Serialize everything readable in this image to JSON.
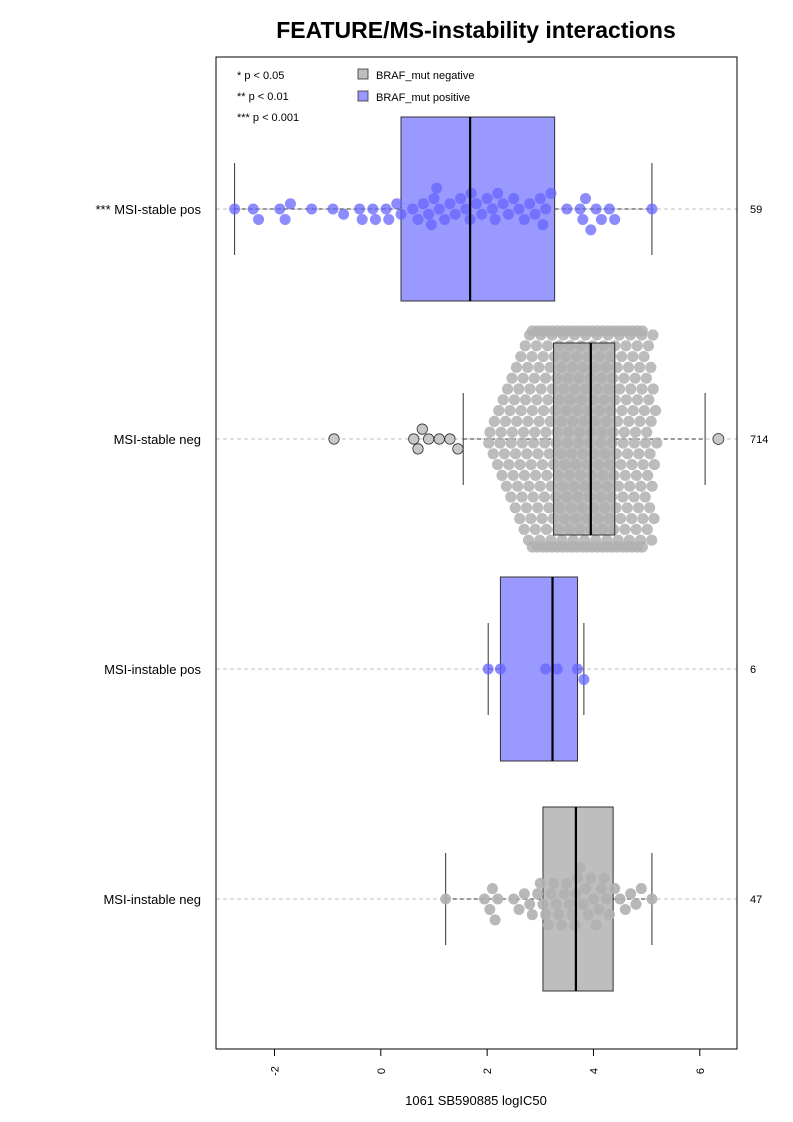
{
  "chart_data": {
    "type": "boxplot-beeswarm",
    "title": "FEATURE/MS-instability interactions",
    "xlabel": "1061 SB590885 logIC50",
    "xlim": [
      -3.1,
      6.7
    ],
    "x_ticks": [
      -2,
      0,
      2,
      4,
      6
    ],
    "x_tick_labels": [
      "-2",
      "0",
      "2",
      "4",
      "6"
    ],
    "grid": "dashed horizontal line per group",
    "legend_position": "top-left",
    "significance_legend": [
      "* p < 0.05",
      "** p < 0.01",
      "*** p < 0.001"
    ],
    "legend": [
      {
        "label": "BRAF_mut negative",
        "color": "#bebebe"
      },
      {
        "label": "BRAF_mut positive",
        "color": "#9999ff"
      }
    ],
    "colors": {
      "negative_box": "#bebebe",
      "positive_box": "#9999ff",
      "negative_point": "#b0b0b0",
      "positive_point": "#6666ff",
      "grid": "#c0c0c0"
    },
    "groups": [
      {
        "label": "*** MSI-stable pos",
        "n_label": "59",
        "braf": "positive",
        "whisker_low": -2.75,
        "q1": 0.38,
        "median": 1.68,
        "q3": 3.27,
        "whisker_high": 5.1,
        "outliers": [],
        "points": [
          -2.75,
          -2.4,
          -2.3,
          -1.9,
          -1.8,
          -1.7,
          -1.3,
          -0.9,
          -0.7,
          -0.4,
          -0.35,
          -0.15,
          -0.1,
          0.1,
          0.15,
          0.3,
          0.38,
          0.6,
          0.7,
          0.8,
          0.9,
          0.95,
          1.0,
          1.05,
          1.1,
          1.2,
          1.3,
          1.4,
          1.5,
          1.6,
          1.68,
          1.7,
          1.8,
          1.9,
          2.0,
          2.1,
          2.15,
          2.2,
          2.3,
          2.4,
          2.5,
          2.6,
          2.7,
          2.8,
          2.9,
          3.0,
          3.05,
          3.1,
          3.2,
          3.5,
          3.75,
          3.8,
          3.85,
          3.95,
          4.05,
          4.15,
          4.3,
          4.4,
          5.1
        ]
      },
      {
        "label": "MSI-stable neg",
        "n_label": "714",
        "braf": "negative",
        "whisker_low": 1.55,
        "q1": 3.25,
        "median": 3.95,
        "q3": 4.4,
        "whisker_high": 6.1,
        "outliers": [
          -0.88,
          0.62,
          0.7,
          0.78,
          0.9,
          1.1,
          1.3,
          1.45,
          6.35
        ]
      },
      {
        "label": "MSI-instable pos",
        "n_label": "6",
        "braf": "positive",
        "whisker_low": 2.02,
        "q1": 2.25,
        "median": 3.23,
        "q3": 3.7,
        "whisker_high": 3.82,
        "outliers": [],
        "points": [
          2.02,
          2.25,
          3.1,
          3.32,
          3.7,
          3.82
        ]
      },
      {
        "label": "MSI-instable neg",
        "n_label": "47",
        "braf": "negative",
        "whisker_low": 1.22,
        "q1": 3.05,
        "median": 3.67,
        "q3": 4.37,
        "whisker_high": 5.1,
        "outliers": [],
        "points": [
          1.22,
          1.95,
          2.05,
          2.1,
          2.15,
          2.2,
          2.5,
          2.6,
          2.7,
          2.8,
          2.85,
          2.95,
          3.0,
          3.05,
          3.1,
          3.15,
          3.2,
          3.25,
          3.3,
          3.35,
          3.4,
          3.45,
          3.5,
          3.55,
          3.6,
          3.65,
          3.67,
          3.7,
          3.75,
          3.8,
          3.85,
          3.9,
          3.95,
          4.0,
          4.05,
          4.1,
          4.15,
          4.2,
          4.25,
          4.3,
          4.4,
          4.5,
          4.6,
          4.7,
          4.8,
          4.9,
          5.1
        ]
      }
    ]
  }
}
